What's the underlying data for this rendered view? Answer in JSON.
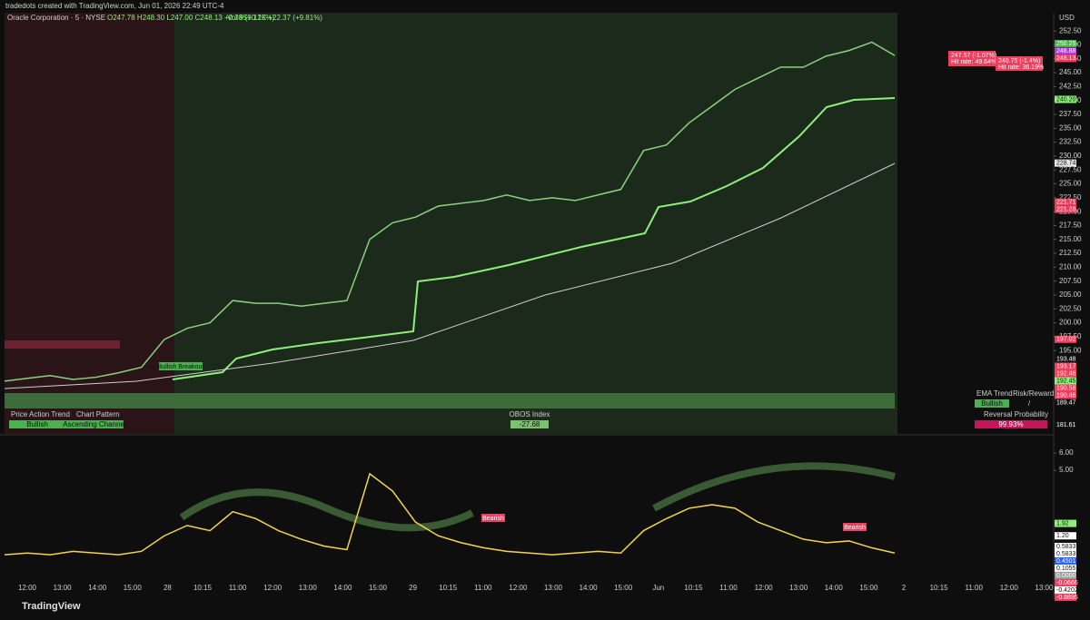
{
  "header": {
    "credit": "tradedots created with TradingView.com, Jun 01, 2026 22:49 UTC-4",
    "symbol": "Oracle Corporation · 5 · NYSE",
    "ohlc": "O247.78 H248.30 L247.00 C248.13 +0.38 (+0.15%)",
    "volume": "Vol 959.12K +22.37 (+9.81%)"
  },
  "currency": "USD",
  "chart_data": [
    {
      "type": "line",
      "color": "#8bd17c",
      "values": [
        189.5,
        190,
        190.5,
        189.8,
        190.2,
        191,
        192,
        197,
        199,
        200,
        204,
        203.5,
        203.5,
        203,
        203.5,
        204,
        215,
        218,
        219,
        221,
        221.5,
        222,
        223,
        222,
        222.5,
        222,
        223,
        224,
        231,
        232,
        236,
        239,
        242,
        244,
        246,
        246,
        248,
        249,
        250.5,
        248.1
      ],
      "ylim": [
        180,
        255.8
      ],
      "yticks": [
        {
          "value": 195,
          "label": "195.00"
        },
        {
          "value": 197.5,
          "label": "197.50"
        },
        {
          "value": 200,
          "label": "200.00"
        },
        {
          "value": 202.5,
          "label": "202.50"
        },
        {
          "value": 205,
          "label": "205.00"
        },
        {
          "value": 207.5,
          "label": "207.50"
        },
        {
          "value": 210,
          "label": "210.00"
        },
        {
          "value": 212.5,
          "label": "212.50"
        },
        {
          "value": 215,
          "label": "215.00"
        },
        {
          "value": 217.5,
          "label": "217.50"
        },
        {
          "value": 220,
          "label": "220.00"
        },
        {
          "value": 222.5,
          "label": "222.50"
        },
        {
          "value": 225,
          "label": "225.00"
        },
        {
          "value": 227.5,
          "label": "227.50"
        },
        {
          "value": 230,
          "label": "230.00"
        },
        {
          "value": 232.5,
          "label": "232.50"
        },
        {
          "value": 235,
          "label": "235.00"
        },
        {
          "value": 237.5,
          "label": "237.50"
        },
        {
          "value": 240,
          "label": "240.00"
        },
        {
          "value": 242.5,
          "label": "242.50"
        },
        {
          "value": 245,
          "label": "245.00"
        },
        {
          "value": 247.5,
          "label": "247.50"
        },
        {
          "value": 250,
          "label": "250.00"
        },
        {
          "value": 252.5,
          "label": "252.50"
        }
      ]
    },
    {
      "type": "line",
      "color": "#f5d547",
      "values": [
        0.1,
        0.2,
        0.1,
        0.3,
        0.2,
        0.1,
        0.3,
        1.2,
        1.8,
        1.5,
        2.6,
        2.2,
        1.5,
        1.0,
        0.6,
        0.4,
        4.8,
        3.8,
        2.0,
        1.2,
        0.8,
        0.5,
        0.3,
        0.2,
        0.1,
        0.2,
        0.3,
        0.2,
        1.5,
        2.2,
        2.8,
        3.0,
        2.8,
        2.0,
        1.5,
        1.0,
        0.8,
        0.9,
        0.5,
        0.2
      ],
      "ylim": [
        -1.42,
        6.9
      ],
      "yticks": [
        {
          "value": 5,
          "label": "5.00"
        },
        {
          "value": 6,
          "label": "6.00"
        }
      ]
    }
  ],
  "price_badges": {
    "values": [
      250.25,
      248.88,
      248.13,
      240.2,
      228.74,
      221.71,
      221.28,
      197.02,
      193.48,
      193.17,
      192.46,
      192.45,
      190.58,
      190.46,
      189.47,
      181.61
    ],
    "value_labels": [
      "250.25",
      "248.88",
      "248.13",
      "240.20",
      "228.74",
      "221.71",
      "221.28",
      "197.02",
      "193.48",
      "193.17",
      "192.46",
      "192.45",
      "190.58",
      "190.46",
      "189.47",
      "181.61"
    ],
    "colors": [
      "#4caf50",
      "#b03cd6",
      "#f23d5d",
      "#8ef07a",
      "#e6e6e6",
      "#f23d5d",
      "#f23d5d",
      "#f23d5d",
      "#111111",
      "#f23d5d",
      "#f23d5d",
      "#8ef07a",
      "#f23d5d",
      "#f23d5d",
      "#111111",
      "#111111"
    ]
  },
  "osc_badges": {
    "values": [
      1.92,
      1.2,
      0.5833,
      0.5833,
      0.4501,
      0.1055,
      0,
      -0.0666,
      -0.4202,
      -0.8895
    ],
    "value_labels": [
      "1.92",
      "1.20",
      "0.5833",
      "0.5833",
      "0.4501",
      "0.1055",
      "0.0000",
      "-0.0666",
      "-0.4202",
      "-0.8895"
    ],
    "colors": [
      "#8ef07a",
      "#ffffff",
      "#ffffff",
      "#ffffff",
      "#2962ff",
      "#ffffff",
      "#9e9e9e",
      "#f23d5d",
      "#ffffff",
      "#f23d5d"
    ]
  },
  "time_labels": [
    "12:00",
    "13:00",
    "14:00",
    "15:00",
    "28",
    "10:15",
    "11:00",
    "12:00",
    "13:00",
    "14:00",
    "15:00",
    "29",
    "10:15",
    "11:00",
    "12:00",
    "13:00",
    "14:00",
    "15:00",
    "Jun",
    "10:15",
    "11:00",
    "12:00",
    "13:00",
    "14:00",
    "15:00",
    "2",
    "10:15",
    "11:00",
    "12:00",
    "13:00"
  ],
  "annotations": {
    "breakout": "Bullish Breakout",
    "target1": "247.57 (-1.07%)",
    "hit1": "Hit rate: 49.64%",
    "target2": "246.75 (-1.4%)",
    "hit2": "Hit rate: 36.19%",
    "bearish": "Bearish"
  },
  "dashboard": {
    "pa_title": "Price Action Trend",
    "pa_value": "Bullish",
    "cp_title": "Chart Pattern",
    "cp_value": "Ascending Channel",
    "obos_title": "OBOS Index",
    "obos_value": "-27.68",
    "ema_title": "EMA Trend",
    "ema_value": "Bullish",
    "rr_title": "Risk/Reward",
    "rr_value": "/",
    "rev_title": "Reversal Probability",
    "rev_value": "99.93%"
  },
  "logo": "TradingView"
}
